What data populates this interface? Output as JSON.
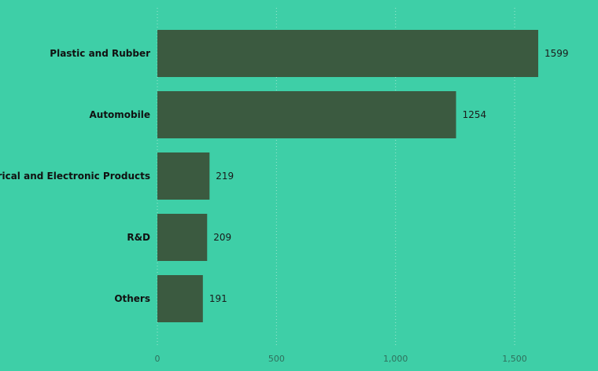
{
  "chart_data": {
    "type": "bar",
    "orientation": "horizontal",
    "categories": [
      "Plastic and Rubber",
      "Automobile",
      "Electrical and Electronic Products",
      "R&D",
      "Others"
    ],
    "values": [
      1599,
      1254,
      219,
      209,
      191
    ],
    "value_labels": [
      "1599",
      "1254",
      "219",
      "209",
      "191"
    ],
    "title": "",
    "xlabel": "",
    "ylabel": "",
    "xlim": [
      0,
      1850
    ],
    "x_ticks": [
      0,
      500,
      1000,
      1500
    ],
    "x_tick_labels": [
      "0",
      "500",
      "1,000",
      "1,500"
    ],
    "grid": true,
    "legend": "none",
    "colors": {
      "background": "#3ecfa7",
      "bar": "#3b5a40",
      "grid": "#9fe6cf",
      "tick_text": "#2f6f5c",
      "label_text": "#111111"
    }
  }
}
